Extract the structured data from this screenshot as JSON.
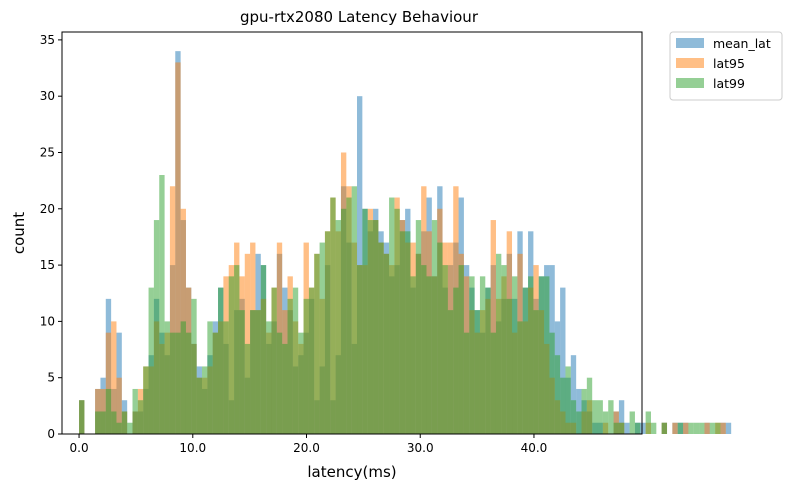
{
  "chart_data": {
    "type": "histogram",
    "title": "gpu-rtx2080 Latency Behaviour",
    "xlabel": "latency(ms)",
    "ylabel": "count",
    "xlim": [
      -1.5,
      49.5
    ],
    "ylim": [
      0,
      35.7
    ],
    "xticks": [
      0,
      10,
      20,
      30,
      40
    ],
    "xtick_labels": [
      "0.0",
      "10.0",
      "20.0",
      "30.0",
      "40.0"
    ],
    "yticks": [
      0,
      5,
      10,
      15,
      20,
      25,
      30,
      35
    ],
    "ytick_labels": [
      "0",
      "5",
      "10",
      "15",
      "20",
      "25",
      "30",
      "35"
    ],
    "bin_width": 0.47,
    "bins_start": 0.0,
    "legend": {
      "position": "outside-upper-right",
      "entries": [
        "mean_lat",
        "lat95",
        "lat99"
      ]
    },
    "series": [
      {
        "name": "mean_lat",
        "color": "#1f77b4",
        "alpha": 0.5,
        "values": [
          3,
          0,
          0,
          4,
          5,
          12,
          4,
          9,
          3,
          0,
          2,
          2,
          4,
          7,
          12,
          9,
          7,
          15,
          34,
          19,
          13,
          8,
          6,
          4,
          7,
          10,
          13,
          8,
          3,
          11,
          12,
          5,
          11,
          16,
          15,
          8,
          10,
          16,
          13,
          11,
          6,
          7,
          9,
          12,
          3,
          6,
          15,
          3,
          7,
          22,
          17,
          8,
          30,
          20,
          18,
          20,
          18,
          17,
          14,
          15,
          19,
          20,
          13,
          16,
          18,
          21,
          14,
          22,
          13,
          15,
          17,
          21,
          15,
          13,
          11,
          9,
          13,
          15,
          10,
          12,
          16,
          12,
          18,
          13,
          18,
          12,
          14,
          15,
          15,
          10,
          13,
          5,
          7,
          4,
          3,
          2,
          1,
          1,
          0,
          0,
          2,
          3,
          1,
          0,
          1,
          1,
          0,
          0,
          0,
          1,
          0,
          1,
          1,
          1,
          0,
          0,
          0,
          1,
          0,
          0,
          1,
          1
        ]
      },
      {
        "name": "lat95",
        "color": "#ff7f0e",
        "alpha": 0.5,
        "values": [
          3,
          0,
          0,
          4,
          4,
          9,
          10,
          5,
          2,
          0,
          2,
          4,
          6,
          6,
          10,
          8,
          9,
          22,
          33,
          20,
          13,
          8,
          5,
          5,
          6,
          9,
          10,
          14,
          15,
          17,
          14,
          16,
          17,
          11,
          12,
          9,
          13,
          17,
          11,
          14,
          10,
          8,
          17,
          13,
          16,
          12,
          18,
          21,
          18,
          25,
          22,
          17,
          15,
          15,
          20,
          19,
          17,
          16,
          15,
          21,
          19,
          17,
          17,
          16,
          22,
          18,
          14,
          20,
          17,
          17,
          22,
          16,
          14,
          11,
          9,
          11,
          12,
          19,
          12,
          14,
          18,
          9,
          16,
          10,
          13,
          15,
          11,
          8,
          5,
          3,
          2,
          1,
          1,
          0,
          2,
          3,
          0,
          0,
          1,
          0,
          2,
          1,
          0,
          0,
          0,
          0,
          1,
          0,
          0,
          1,
          0,
          1,
          0,
          1,
          0,
          0,
          0,
          1,
          0,
          1,
          1,
          0
        ]
      },
      {
        "name": "lat99",
        "color": "#2ca02c",
        "alpha": 0.5,
        "values": [
          3,
          0,
          0,
          2,
          2,
          4,
          2,
          1,
          2,
          1,
          4,
          3,
          6,
          13,
          19,
          23,
          10,
          9,
          9,
          10,
          9,
          12,
          5,
          6,
          10,
          9,
          13,
          10,
          14,
          15,
          11,
          8,
          11,
          11,
          15,
          10,
          13,
          9,
          8,
          12,
          13,
          9,
          12,
          13,
          16,
          17,
          18,
          21,
          19,
          20,
          21,
          22,
          15,
          20,
          19,
          19,
          17,
          16,
          21,
          20,
          18,
          18,
          14,
          19,
          15,
          14,
          19,
          17,
          15,
          11,
          13,
          15,
          9,
          14,
          11,
          14,
          13,
          9,
          16,
          15,
          12,
          14,
          10,
          13,
          14,
          11,
          14,
          14,
          9,
          7,
          5,
          6,
          3,
          2,
          4,
          5,
          3,
          3,
          2,
          3,
          1,
          1,
          0,
          2,
          1,
          0,
          2,
          1,
          0,
          1,
          0,
          0,
          1,
          0,
          1,
          1,
          1,
          0,
          1,
          1,
          0,
          0
        ]
      }
    ]
  }
}
